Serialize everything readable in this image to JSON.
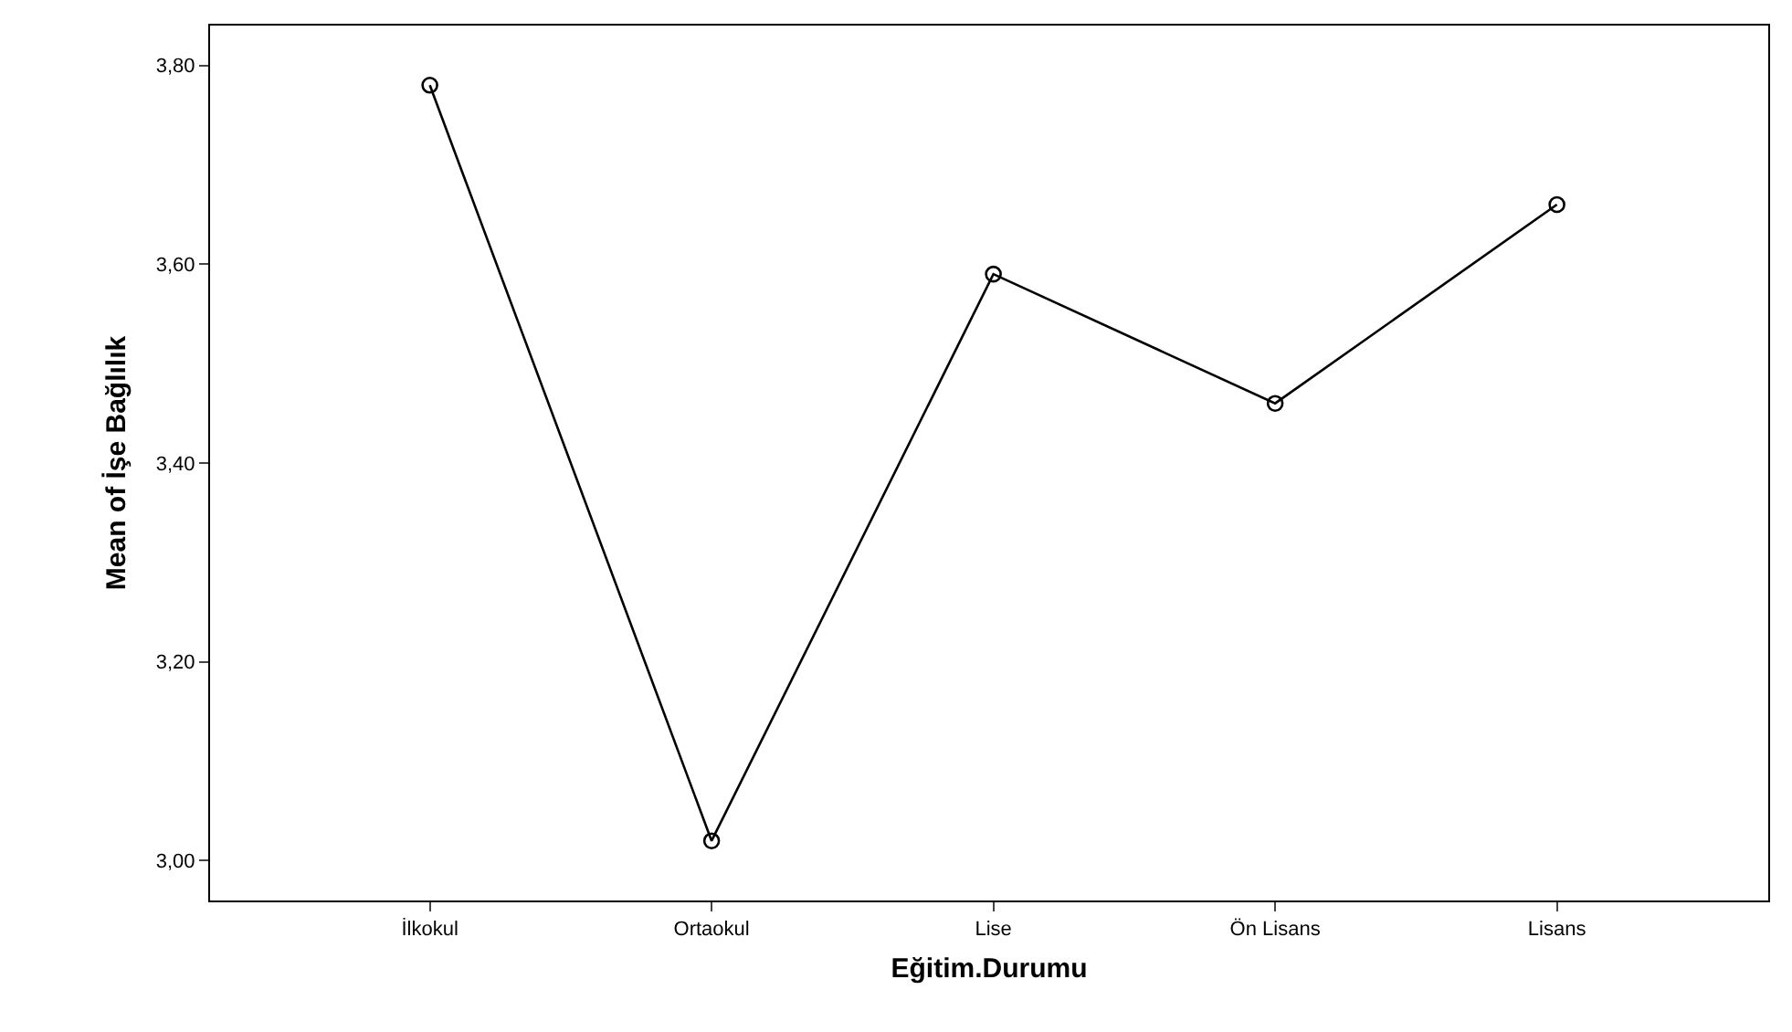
{
  "chart_data": {
    "type": "line",
    "xlabel": "Eğitim.Durumu",
    "ylabel": "Mean of İşe Bağlılık",
    "categories": [
      "İlkokul",
      "Ortaokul",
      "Lise",
      "Ön Lisans",
      "Lisans"
    ],
    "series": [
      {
        "color": "#000000",
        "values": [
          3.78,
          3.02,
          3.59,
          3.46,
          3.66
        ]
      }
    ],
    "ylim": [
      2.96,
      3.84
    ],
    "yticks": [
      {
        "value": 3.0,
        "label": "3,00"
      },
      {
        "value": 3.2,
        "label": "3,20"
      },
      {
        "value": 3.4,
        "label": "3,40"
      },
      {
        "value": 3.6,
        "label": "3,60"
      },
      {
        "value": 3.8,
        "label": "3,80"
      }
    ],
    "legend": false,
    "marker": "circle",
    "line_style": "solid"
  }
}
